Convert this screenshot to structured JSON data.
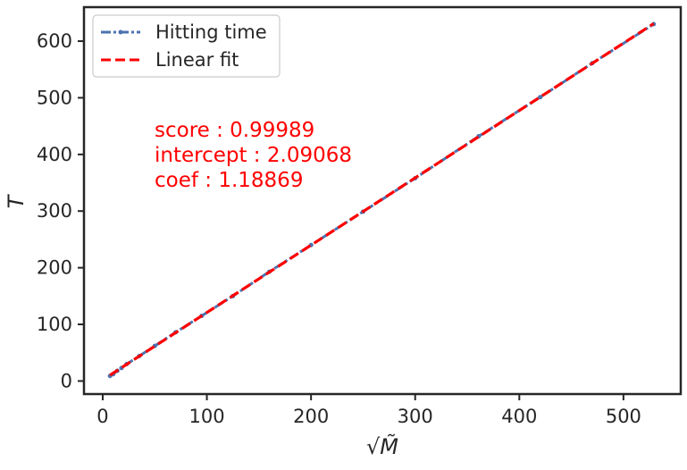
{
  "chart_data": {
    "type": "line",
    "xlabel": "√M̃",
    "ylabel": "T",
    "xlim": [
      -18,
      555
    ],
    "ylim": [
      -23,
      660
    ],
    "xticks": [
      0,
      100,
      200,
      300,
      400,
      500
    ],
    "yticks": [
      0,
      100,
      200,
      300,
      400,
      500,
      600
    ],
    "grid": false,
    "legend_position": "top-left",
    "series": [
      {
        "name": "Hitting time",
        "style": "dash-dot with point markers",
        "color": "#4c72b0",
        "x": [
          7,
          10,
          14,
          18,
          23,
          35,
          50,
          70,
          95,
          125,
          160,
          200,
          250,
          300,
          361,
          420,
          470,
          529
        ],
        "y": [
          9,
          12,
          18,
          23,
          30,
          44,
          62,
          86,
          115,
          150,
          193,
          240,
          299,
          358,
          432,
          501,
          561,
          630
        ]
      },
      {
        "name": "Linear fit",
        "style": "dashed",
        "color": "#ff0000",
        "x": [
          7,
          529
        ],
        "y": [
          10.4,
          630.9
        ]
      }
    ],
    "annotations": [
      "score : 0.99989",
      "intercept : 2.09068",
      "coef : 1.18869"
    ],
    "annotation_color": "#ff0000"
  }
}
